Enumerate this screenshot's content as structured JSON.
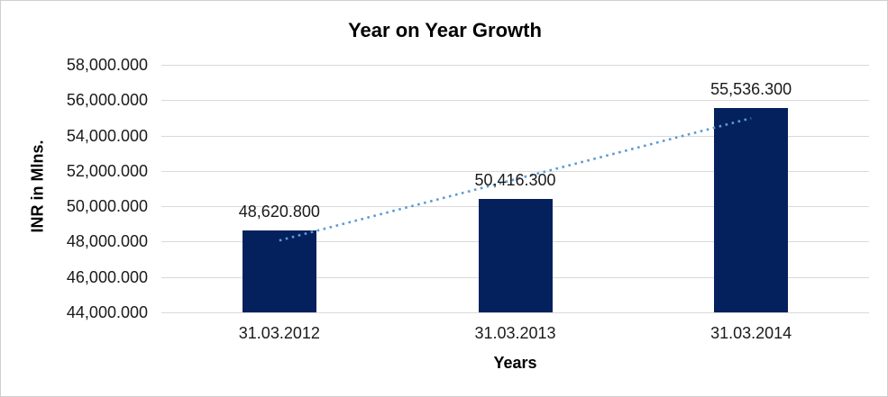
{
  "chart_data": {
    "type": "bar",
    "title": "Year on Year Growth",
    "xlabel": "Years",
    "ylabel": "INR in Mlns.",
    "categories": [
      "31.03.2012",
      "31.03.2013",
      "31.03.2014"
    ],
    "series": [
      {
        "name": "INR in Mlns.",
        "values": [
          48620.8,
          50416.3,
          55536.3
        ],
        "value_labels": [
          "48,620.800",
          "50,416.300",
          "55,536.300"
        ]
      }
    ],
    "ylim": [
      44000,
      58000
    ],
    "ytick_step": 2000,
    "ytick_labels": [
      "58,000.000",
      "56,000.000",
      "54,000.000",
      "52,000.000",
      "50,000.000",
      "48,000.000",
      "46,000.000",
      "44,000.000"
    ],
    "grid": true,
    "legend": "none",
    "trendline": {
      "type": "linear",
      "style": "dotted"
    },
    "colors": {
      "bar": "#04215E",
      "trendline": "#5B9BD5",
      "gridline": "#D9D9D9",
      "text": "#1A1A1A",
      "title_text": "#000000",
      "canvas_border": "#CFCFCF",
      "background": "#FFFFFF"
    }
  }
}
